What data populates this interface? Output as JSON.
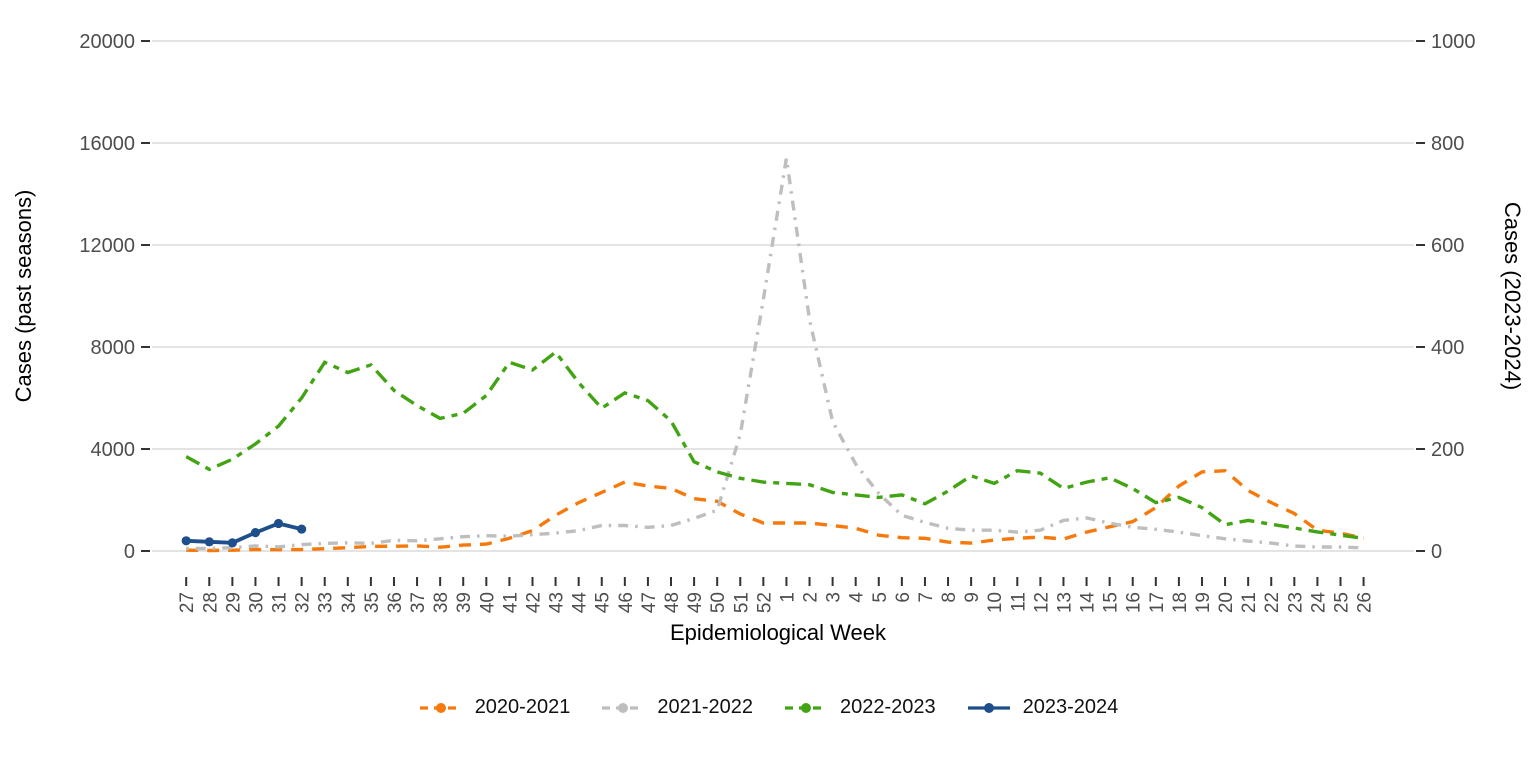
{
  "chart_data": {
    "type": "line",
    "title": "",
    "xlabel": "Epidemiological Week",
    "ylabel_left": "Cases (past seasons)",
    "ylabel_right": "Cases (2023-2024)",
    "grid": "horizontal-only",
    "legend_position": "bottom",
    "x_categories": [
      "27",
      "28",
      "29",
      "30",
      "31",
      "32",
      "33",
      "34",
      "35",
      "36",
      "37",
      "38",
      "39",
      "40",
      "41",
      "42",
      "43",
      "44",
      "45",
      "46",
      "47",
      "48",
      "49",
      "50",
      "51",
      "52",
      "1",
      "2",
      "3",
      "4",
      "5",
      "6",
      "7",
      "8",
      "9",
      "10",
      "11",
      "12",
      "13",
      "14",
      "15",
      "16",
      "17",
      "18",
      "19",
      "20",
      "21",
      "22",
      "23",
      "24",
      "25",
      "26"
    ],
    "left_axis": {
      "ticks": [
        0,
        4000,
        8000,
        12000,
        16000,
        20000
      ],
      "range": [
        0,
        20000
      ]
    },
    "right_axis": {
      "ticks": [
        0,
        200,
        400,
        600,
        800,
        1000
      ],
      "range": [
        0,
        1000
      ]
    },
    "series": [
      {
        "name": "2020-2021",
        "color": "#F8790B",
        "axis": "left",
        "linestyle": "dashed",
        "markers": false,
        "values": [
          30,
          20,
          30,
          60,
          50,
          60,
          90,
          130,
          180,
          190,
          200,
          150,
          230,
          270,
          500,
          800,
          1400,
          1900,
          2300,
          2700,
          2550,
          2450,
          2050,
          1950,
          1450,
          1100,
          1100,
          1100,
          1000,
          890,
          620,
          520,
          500,
          350,
          310,
          430,
          500,
          545,
          470,
          740,
          950,
          1150,
          1700,
          2550,
          3100,
          3150,
          2370,
          1900,
          1470,
          815,
          700,
          505
        ]
      },
      {
        "name": "2021-2022",
        "color": "#BEBEBE",
        "axis": "left",
        "linestyle": "dashdot",
        "markers": false,
        "values": [
          100,
          100,
          130,
          200,
          160,
          250,
          300,
          320,
          300,
          420,
          400,
          480,
          560,
          600,
          580,
          640,
          700,
          800,
          1000,
          1000,
          930,
          1000,
          1280,
          1600,
          4580,
          9860,
          15400,
          9080,
          5080,
          3410,
          2250,
          1400,
          1120,
          890,
          815,
          815,
          740,
          815,
          1200,
          1300,
          1090,
          930,
          850,
          740,
          600,
          480,
          390,
          310,
          195,
          155,
          155,
          120
        ]
      },
      {
        "name": "2022-2023",
        "color": "#42A413",
        "axis": "left",
        "linestyle": "twodash",
        "markers": false,
        "values": [
          3700,
          3200,
          3600,
          4200,
          4900,
          6000,
          7400,
          7000,
          7300,
          6300,
          5700,
          5200,
          5400,
          6100,
          7400,
          7100,
          7800,
          6600,
          5600,
          6200,
          5900,
          5100,
          3500,
          3100,
          2850,
          2700,
          2650,
          2600,
          2300,
          2200,
          2100,
          2200,
          1850,
          2350,
          2950,
          2650,
          3150,
          3050,
          2450,
          2700,
          2870,
          2450,
          1900,
          2100,
          1700,
          1030,
          1200,
          1050,
          900,
          750,
          620,
          500
        ]
      },
      {
        "name": "2023-2024",
        "color": "#1E4E8C",
        "axis": "right",
        "linestyle": "solid",
        "markers": true,
        "values": [
          20,
          18,
          16,
          36,
          54,
          43,
          null,
          null,
          null,
          null,
          null,
          null,
          null,
          null,
          null,
          null,
          null,
          null,
          null,
          null,
          null,
          null,
          null,
          null,
          null,
          null,
          null,
          null,
          null,
          null,
          null,
          null,
          null,
          null,
          null,
          null,
          null,
          null,
          null,
          null,
          null,
          null,
          null,
          null,
          null,
          null,
          null,
          null,
          null,
          null,
          null,
          null
        ]
      }
    ]
  },
  "style_colors": {
    "gridline": "#DCDCDC",
    "tick_mark": "#333333",
    "tick_label": "#4D4D4D",
    "axis_title": "#000000"
  }
}
